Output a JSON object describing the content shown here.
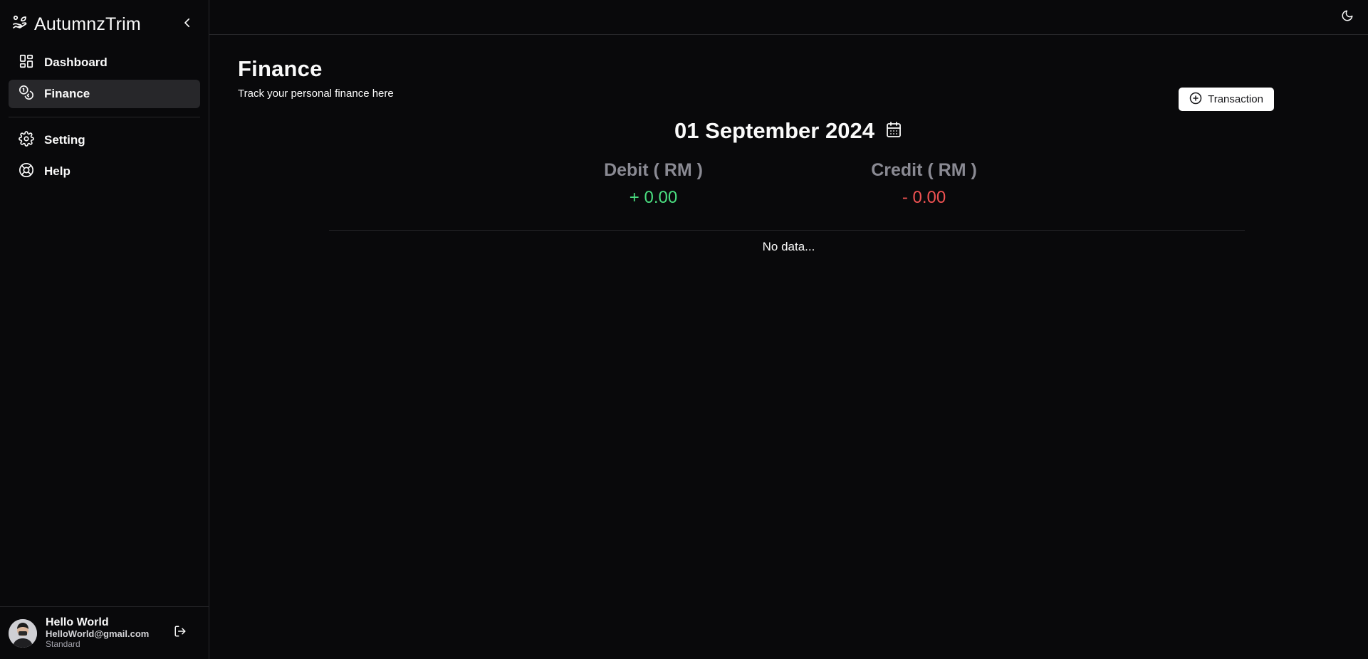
{
  "app": {
    "name": "AutumnzTrim"
  },
  "sidebar": {
    "items": [
      {
        "label": "Dashboard"
      },
      {
        "label": "Finance",
        "active": true
      },
      {
        "label": "Setting"
      },
      {
        "label": "Help"
      }
    ]
  },
  "user": {
    "name": "Hello World",
    "email": "HelloWorld@gmail.com",
    "plan": "Standard"
  },
  "page": {
    "title": "Finance",
    "subtitle": "Track your personal finance here",
    "transaction_button": "Transaction",
    "date": "01 September 2024",
    "debit_label": "Debit ( RM )",
    "debit_value": "+ 0.00",
    "credit_label": "Credit ( RM )",
    "credit_value": "- 0.00",
    "empty_text": "No data..."
  },
  "colors": {
    "background": "#09090b",
    "border": "#27272a",
    "debit": "#4ade80",
    "credit": "#f05252",
    "muted_label": "#8a8a93"
  },
  "icons": {
    "brand": "plant-hand-icon",
    "collapse": "chevron-left-icon",
    "dashboard": "layout-dashboard-icon",
    "finance": "coins-icon",
    "setting": "gear-icon",
    "help": "life-buoy-icon",
    "logout": "logout-icon",
    "theme": "moon-icon",
    "transaction": "plus-circle-icon",
    "calendar": "calendar-icon"
  }
}
